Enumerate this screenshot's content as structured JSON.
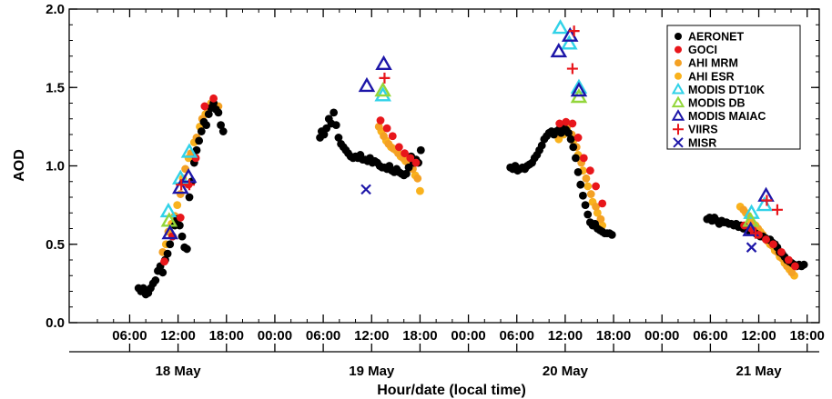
{
  "chart_data": {
    "type": "scatter",
    "title": "",
    "ylabel": "AOD",
    "xlabel": "Hour/date (local time)",
    "ylim": [
      0.0,
      2.0
    ],
    "xlim": [
      -1.5,
      91.5
    ],
    "grid": false,
    "legend_position": "top-right",
    "y_ticks": [
      {
        "value": 0.0,
        "label": "0.0"
      },
      {
        "value": 0.5,
        "label": "0.5"
      },
      {
        "value": 1.0,
        "label": "1.0"
      },
      {
        "value": 1.5,
        "label": "1.5"
      },
      {
        "value": 2.0,
        "label": "2.0"
      }
    ],
    "x_ticks": [
      {
        "value": 6,
        "label": "06:00"
      },
      {
        "value": 12,
        "label": "12:00"
      },
      {
        "value": 18,
        "label": "18:00"
      },
      {
        "value": 24,
        "label": "00:00"
      },
      {
        "value": 30,
        "label": "06:00"
      },
      {
        "value": 36,
        "label": "12:00"
      },
      {
        "value": 42,
        "label": "18:00"
      },
      {
        "value": 48,
        "label": "00:00"
      },
      {
        "value": 54,
        "label": "06:00"
      },
      {
        "value": 60,
        "label": "12:00"
      },
      {
        "value": 66,
        "label": "18:00"
      },
      {
        "value": 72,
        "label": "00:00"
      },
      {
        "value": 78,
        "label": "06:00"
      },
      {
        "value": 84,
        "label": "12:00"
      },
      {
        "value": 90,
        "label": "18:00"
      }
    ],
    "date_labels": [
      {
        "x": 12,
        "label": "18 May"
      },
      {
        "x": 36,
        "label": "19 May"
      },
      {
        "x": 60,
        "label": "20 May"
      },
      {
        "x": 84,
        "label": "21 May"
      }
    ],
    "series": [
      {
        "name": "AERONET",
        "marker": "circle",
        "color": "#000000",
        "x": [
          7.1,
          7.4,
          7.7,
          8.0,
          8.3,
          8.6,
          8.9,
          9.2,
          9.5,
          9.8,
          10.1,
          10.4,
          10.7,
          11.0,
          11.3,
          11.6,
          11.9,
          12.2,
          12.5,
          12.8,
          13.1,
          13.4,
          13.7,
          14.0,
          14.3,
          14.6,
          14.9,
          15.2,
          15.5,
          15.8,
          16.1,
          16.4,
          16.7,
          17.0,
          17.3,
          17.6,
          29.6,
          29.8,
          30.1,
          30.4,
          30.7,
          31.0,
          31.3,
          31.6,
          31.9,
          32.2,
          32.5,
          32.8,
          33.1,
          33.4,
          33.7,
          34.0,
          34.3,
          34.6,
          34.9,
          35.2,
          35.5,
          35.8,
          36.1,
          36.4,
          36.7,
          37.0,
          37.3,
          37.6,
          37.9,
          38.2,
          38.5,
          38.8,
          39.1,
          39.4,
          39.7,
          40.0,
          40.3,
          40.6,
          40.9,
          41.2,
          41.5,
          41.8,
          42.1,
          53.2,
          53.5,
          53.8,
          54.1,
          54.4,
          54.7,
          55.0,
          55.3,
          55.6,
          55.9,
          56.2,
          56.5,
          56.8,
          57.1,
          57.4,
          57.7,
          58.0,
          58.3,
          58.6,
          58.9,
          59.2,
          59.5,
          59.8,
          60.1,
          60.4,
          60.7,
          61.0,
          61.3,
          61.6,
          61.9,
          62.2,
          62.5,
          62.8,
          63.1,
          63.4,
          63.7,
          64.0,
          64.3,
          64.6,
          64.9,
          65.2,
          65.5,
          65.8,
          77.6,
          77.9,
          78.2,
          78.5,
          78.8,
          79.1,
          79.4,
          79.7,
          80.0,
          80.3,
          80.6,
          80.9,
          81.2,
          81.5,
          81.8,
          82.1,
          82.4,
          82.7,
          83.0,
          83.3,
          83.6,
          83.9,
          84.2,
          84.5,
          84.8,
          85.1,
          85.4,
          85.7,
          86.0,
          86.3,
          86.6,
          86.9,
          87.2,
          87.5,
          87.8,
          88.1,
          88.4,
          88.7,
          89.0,
          89.3,
          89.6
        ],
        "y": [
          0.22,
          0.2,
          0.22,
          0.18,
          0.19,
          0.22,
          0.25,
          0.27,
          0.33,
          0.36,
          0.32,
          0.4,
          0.44,
          0.5,
          0.55,
          0.62,
          0.66,
          0.62,
          0.55,
          0.48,
          0.47,
          0.8,
          0.9,
          1.02,
          1.1,
          1.16,
          1.22,
          1.28,
          1.26,
          1.33,
          1.37,
          1.4,
          1.36,
          1.34,
          1.26,
          1.22,
          1.18,
          1.22,
          1.2,
          1.24,
          1.3,
          1.27,
          1.34,
          1.26,
          1.18,
          1.14,
          1.12,
          1.1,
          1.08,
          1.06,
          1.05,
          1.06,
          1.05,
          1.07,
          1.04,
          1.04,
          1.03,
          1.05,
          1.02,
          1.03,
          1.02,
          1.0,
          0.99,
          0.99,
          0.98,
          1.0,
          0.97,
          0.96,
          0.98,
          0.96,
          0.95,
          0.94,
          0.95,
          0.99,
          1.06,
          1.02,
          1.04,
          1.02,
          1.1,
          0.99,
          0.98,
          1.0,
          0.97,
          0.98,
          0.99,
          0.98,
          1.0,
          1.01,
          1.02,
          1.05,
          1.07,
          1.1,
          1.13,
          1.17,
          1.19,
          1.21,
          1.22,
          1.2,
          1.22,
          1.23,
          1.21,
          1.24,
          1.23,
          1.21,
          1.17,
          1.12,
          1.05,
          0.96,
          0.88,
          0.81,
          0.75,
          0.69,
          0.64,
          0.62,
          0.63,
          0.6,
          0.59,
          0.58,
          0.57,
          0.57,
          0.57,
          0.56,
          0.66,
          0.67,
          0.65,
          0.67,
          0.65,
          0.63,
          0.65,
          0.64,
          0.64,
          0.63,
          0.63,
          0.62,
          0.63,
          0.61,
          0.62,
          0.6,
          0.6,
          0.59,
          0.59,
          0.58,
          0.57,
          0.56,
          0.55,
          0.55,
          0.54,
          0.53,
          0.53,
          0.51,
          0.5,
          0.48,
          0.45,
          0.44,
          0.42,
          0.4,
          0.39,
          0.38,
          0.37,
          0.36,
          0.37,
          0.36,
          0.37
        ]
      },
      {
        "name": "GOCI",
        "marker": "circle",
        "color": "#e8161b",
        "x": [
          10.3,
          11.3,
          12.3,
          13.3,
          14.2,
          15.3,
          16.4,
          37.1,
          37.9,
          38.6,
          39.4,
          40.1,
          40.8,
          41.5,
          59.3,
          60.1,
          60.9,
          61.6,
          62.3,
          63.1,
          63.8,
          64.6,
          82.2,
          83.1,
          84.0,
          84.9,
          85.8,
          86.8,
          87.7,
          88.5
        ],
        "y": [
          0.39,
          0.55,
          0.67,
          0.88,
          1.05,
          1.38,
          1.43,
          1.29,
          1.24,
          1.19,
          1.12,
          1.08,
          1.05,
          1.02,
          1.27,
          1.28,
          1.27,
          1.18,
          1.05,
          0.97,
          0.87,
          0.76,
          0.62,
          0.6,
          0.56,
          0.53,
          0.5,
          0.45,
          0.4,
          0.36
        ]
      },
      {
        "name": "AHI MRM",
        "marker": "circle",
        "color": "#f4a124",
        "x": [
          10.1,
          10.8,
          11.6,
          12.3,
          12.9,
          13.6,
          14.3,
          15.0,
          15.7,
          16.4,
          17.0,
          36.9,
          37.5,
          38.1,
          38.7,
          39.3,
          39.9,
          40.5,
          41.1,
          41.7,
          59.0,
          59.6,
          60.2,
          60.8,
          61.4,
          62.0,
          62.6,
          63.2,
          63.8,
          64.4,
          82.1,
          82.7,
          83.3,
          83.9,
          84.5,
          85.1,
          85.7,
          86.3,
          86.9,
          87.5,
          88.1
        ],
        "y": [
          0.45,
          0.58,
          0.68,
          0.82,
          0.98,
          1.08,
          1.18,
          1.3,
          1.36,
          1.4,
          1.38,
          1.25,
          1.19,
          1.14,
          1.11,
          1.08,
          1.05,
          1.02,
          0.98,
          0.92,
          1.2,
          1.22,
          1.24,
          1.2,
          1.12,
          1.02,
          0.92,
          0.82,
          0.74,
          0.66,
          0.72,
          0.68,
          0.63,
          0.6,
          0.56,
          0.52,
          0.49,
          0.45,
          0.41,
          0.36,
          0.32
        ]
      },
      {
        "name": "AHI ESR",
        "marker": "circle",
        "color": "#f9b21d",
        "x": [
          10.5,
          11.2,
          11.9,
          12.6,
          13.3,
          14.0,
          14.7,
          15.4,
          16.1,
          16.8,
          37.2,
          37.8,
          38.4,
          39.0,
          39.6,
          40.2,
          40.8,
          41.4,
          42.0,
          59.2,
          59.8,
          60.4,
          61.0,
          61.6,
          62.2,
          62.8,
          63.4,
          64.0,
          64.6,
          81.7,
          82.4,
          83.0,
          83.6,
          84.2,
          84.8,
          85.4,
          86.0,
          86.6,
          87.2,
          87.8,
          88.4
        ],
        "y": [
          0.5,
          0.63,
          0.75,
          0.92,
          1.05,
          1.15,
          1.25,
          1.33,
          1.4,
          1.36,
          1.22,
          1.16,
          1.12,
          1.1,
          1.06,
          1.03,
          0.99,
          0.94,
          0.84,
          1.17,
          1.2,
          1.21,
          1.16,
          1.07,
          0.97,
          0.87,
          0.77,
          0.7,
          0.62,
          0.74,
          0.7,
          0.65,
          0.62,
          0.58,
          0.54,
          0.5,
          0.46,
          0.42,
          0.38,
          0.34,
          0.3
        ]
      },
      {
        "name": "MODIS DT10K",
        "marker": "triangle",
        "color": "#31d2e8",
        "x": [
          10.8,
          12.3,
          13.4,
          37.4,
          59.4,
          60.5,
          61.7,
          83.1,
          84.7
        ],
        "y": [
          0.71,
          0.92,
          1.09,
          1.45,
          1.88,
          1.78,
          1.5,
          0.7,
          0.75
        ]
      },
      {
        "name": "MODIS DB",
        "marker": "triangle",
        "color": "#93d63b",
        "x": [
          10.9,
          37.4,
          61.7,
          83.0
        ],
        "y": [
          0.65,
          1.48,
          1.44,
          0.65
        ]
      },
      {
        "name": "MODIS MAIAC",
        "marker": "triangle",
        "color": "#1d16a8",
        "x": [
          11.0,
          12.3,
          13.3,
          35.4,
          37.5,
          59.2,
          60.6,
          61.7,
          83.0,
          84.9
        ],
        "y": [
          0.57,
          0.86,
          0.93,
          1.51,
          1.65,
          1.73,
          1.83,
          1.48,
          0.59,
          0.81
        ]
      },
      {
        "name": "VIIRS",
        "marker": "plus",
        "color": "#e8161b",
        "x": [
          12.4,
          13.4,
          37.6,
          61.1,
          60.9,
          83.6,
          85.0,
          86.3
        ],
        "y": [
          0.88,
          0.88,
          1.56,
          1.86,
          1.62,
          0.57,
          0.78,
          0.72
        ]
      },
      {
        "name": "MISR",
        "marker": "x",
        "color": "#1d16a8",
        "x": [
          35.3,
          83.1
        ],
        "y": [
          0.85,
          0.48
        ]
      }
    ]
  }
}
